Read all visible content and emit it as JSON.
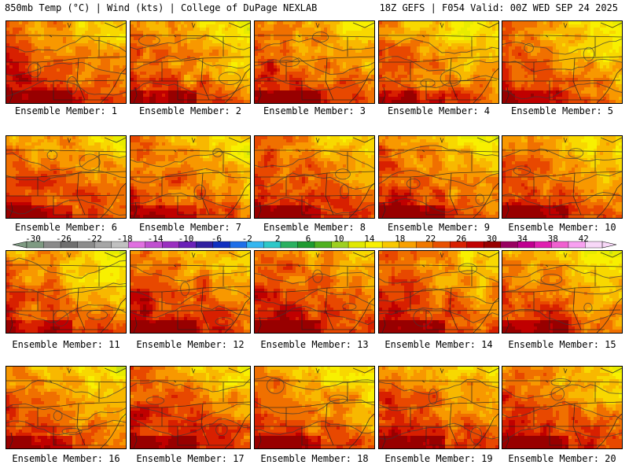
{
  "header": {
    "left_title": "850mb Temp (°C) | Wind (kts) | College of DuPage NEXLAB",
    "right_title": "18Z GEFS | F054 Valid: 00Z WED SEP 24 2025"
  },
  "map": {
    "variable": "850mb Temperature",
    "units": "°C",
    "model": "GEFS",
    "cycle": "18Z",
    "forecast_hour": "F054",
    "valid": "00Z WED SEP 24 2025"
  },
  "panels": [
    {
      "label": "Ensemble Member: 1",
      "member": 1
    },
    {
      "label": "Ensemble Member: 2",
      "member": 2
    },
    {
      "label": "Ensemble Member: 3",
      "member": 3
    },
    {
      "label": "Ensemble Member: 4",
      "member": 4
    },
    {
      "label": "Ensemble Member: 5",
      "member": 5
    },
    {
      "label": "Ensemble Member: 6",
      "member": 6
    },
    {
      "label": "Ensemble Member: 7",
      "member": 7
    },
    {
      "label": "Ensemble Member: 8",
      "member": 8
    },
    {
      "label": "Ensemble Member: 9",
      "member": 9
    },
    {
      "label": "Ensemble Member: 10",
      "member": 10
    },
    {
      "label": "Ensemble Member: 11",
      "member": 11
    },
    {
      "label": "Ensemble Member: 12",
      "member": 12
    },
    {
      "label": "Ensemble Member: 13",
      "member": 13
    },
    {
      "label": "Ensemble Member: 14",
      "member": 14
    },
    {
      "label": "Ensemble Member: 15",
      "member": 15
    },
    {
      "label": "Ensemble Member: 16",
      "member": 16
    },
    {
      "label": "Ensemble Member: 17",
      "member": 17
    },
    {
      "label": "Ensemble Member: 18",
      "member": 18
    },
    {
      "label": "Ensemble Member: 19",
      "member": 19
    },
    {
      "label": "Ensemble Member: 20",
      "member": 20
    }
  ],
  "colorbar": {
    "ticks": [
      "-30",
      "-26",
      "-22",
      "-18",
      "-14",
      "-10",
      "-6",
      "-2",
      "2",
      "6",
      "10",
      "14",
      "18",
      "22",
      "26",
      "30",
      "34",
      "38",
      "42"
    ],
    "tick_values": [
      -30,
      -26,
      -22,
      -18,
      -14,
      -10,
      -6,
      -2,
      2,
      6,
      10,
      14,
      18,
      22,
      26,
      30,
      34,
      38,
      42
    ],
    "colors": [
      "#7e9a82",
      "#8a8a8a",
      "#6f6f6f",
      "#8c8c8c",
      "#a6a6a6",
      "#c0c0c0",
      "#e070e0",
      "#c050d0",
      "#9a30c0",
      "#6a20b8",
      "#3020a0",
      "#1030c0",
      "#1e6ee8",
      "#34b6f0",
      "#2ec8c8",
      "#2ab060",
      "#1e9a30",
      "#50b020",
      "#9ed020",
      "#e0e800",
      "#f8f000",
      "#f8c800",
      "#f8a000",
      "#f07800",
      "#e85000",
      "#d82000",
      "#c00000",
      "#980000",
      "#980060",
      "#c00090",
      "#e020b0",
      "#f060d0",
      "#f8a0f0",
      "#f8d8f8"
    ]
  }
}
